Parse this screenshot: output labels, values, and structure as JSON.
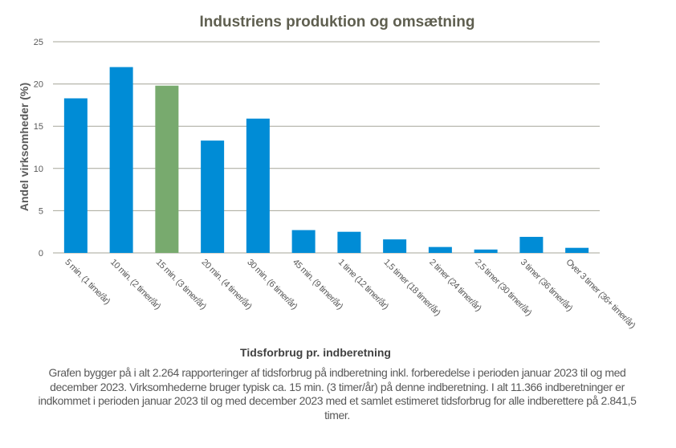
{
  "chart_data": {
    "type": "bar",
    "title": "Industriens produktion og omsætning",
    "xlabel": "Tidsforbrug pr. indberetning",
    "ylabel": "Andel virksomheder (%)",
    "ylim": [
      0,
      25
    ],
    "yticks": [
      0,
      5,
      10,
      15,
      20,
      25
    ],
    "grid": true,
    "categories": [
      "5 min. (1 time/år)",
      "10 min. (2 timer/år)",
      "15 min. (3 timer/år)",
      "20 min. (4 timer/år)",
      "30 min. (6 timer/år)",
      "45 min. (9 timer/år)",
      "1 time (12 timer/år)",
      "1,5 timer (18 timer/år)",
      "2 timer (24 timer/år)",
      "2,5 timer (30 timer/år)",
      "3 timer (36 timer/år)",
      "Over 3 timer (36+ timer/år)"
    ],
    "values": [
      18.3,
      22.0,
      19.8,
      13.3,
      15.9,
      2.7,
      2.5,
      1.6,
      0.7,
      0.4,
      1.9,
      0.6
    ],
    "colors": {
      "default": "#008CD6",
      "highlight": "#78AA6E",
      "grid": "#A6A69A",
      "text": "#595959",
      "title": "#5F5F50"
    },
    "highlight_index": 2
  },
  "note": "Grafen bygger på i alt 2.264 rapporteringer af tidsforbrug på indberetning inkl. forberedelse i perioden januar 2023 til og med december 2023. Virksomhederne bruger typisk ca. 15 min. (3 timer/år) på denne indberetning. I alt 11.366 indberetninger er indkommet i perioden januar 2023 til og med december 2023 med et samlet estimeret tidsforbrug for alle indberettere på 2.841,5 timer."
}
